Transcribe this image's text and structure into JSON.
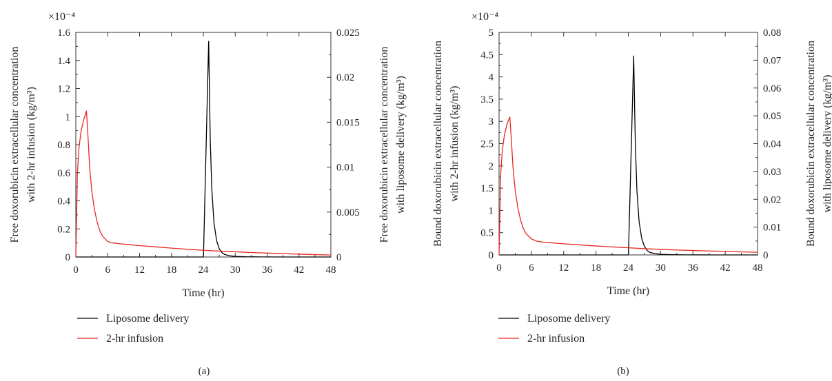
{
  "chart_data": [
    {
      "type": "line",
      "panel_label": "(a)",
      "xlabel": "Time (hr)",
      "xlim": [
        0,
        48
      ],
      "x_ticks": [
        0,
        6,
        12,
        18,
        24,
        30,
        36,
        42,
        48
      ],
      "ylabel_left": "Free doxorubicin extracellular concentration with 2-hr infusion (kg/m³)",
      "ylabel_left_lines": [
        "Free doxorubicin extracellular concentration",
        "with 2-hr infusion (kg/m³)"
      ],
      "ylim_left": [
        0,
        1.6
      ],
      "y_ticks_left": [
        0,
        0.2,
        0.4,
        0.6,
        0.8,
        1,
        1.2,
        1.4,
        1.6
      ],
      "y_left_multiplier": "×10⁻⁴",
      "ylabel_right": "Free doxorubicin extracellular concentration with liposome delivery (kg/m³)",
      "ylabel_right_lines": [
        "Free doxorubicin extracellular concentration",
        "with liposome delivery (kg/m³)"
      ],
      "ylim_right": [
        0,
        0.025
      ],
      "y_ticks_right": [
        0,
        0.005,
        0.01,
        0.015,
        0.02,
        0.025
      ],
      "y_tick_labels_right": [
        "0",
        "0.005",
        "0.01",
        "0.015",
        "0.02",
        "0.025"
      ],
      "grid": false,
      "legend_position": "bottom-left",
      "series": [
        {
          "name": "Liposome delivery",
          "color": "#000000",
          "axis": "right",
          "x": [
            0,
            24,
            24.02,
            25,
            25.3,
            25.6,
            26,
            26.5,
            27,
            27.5,
            28,
            29,
            30,
            32,
            35,
            40,
            48
          ],
          "y": [
            0,
            0,
            0,
            0.024,
            0.013,
            0.0075,
            0.0038,
            0.0018,
            0.0009,
            0.00048,
            0.00028,
            0.00013,
            7e-05,
            3e-05,
            1e-05,
            0,
            0
          ]
        },
        {
          "name": "2-hr infusion",
          "color": "#e8281e",
          "axis": "left",
          "x": [
            0,
            0.3,
            0.6,
            1.0,
            1.5,
            2.0,
            2.3,
            2.6,
            3.0,
            3.5,
            4.0,
            4.5,
            5.0,
            6.0,
            7.0,
            8.0,
            10,
            12,
            15,
            18,
            21,
            24,
            27,
            30,
            33,
            36,
            39,
            42,
            45,
            48
          ],
          "y": [
            0,
            0.6,
            0.78,
            0.9,
            0.98,
            1.04,
            0.85,
            0.64,
            0.47,
            0.34,
            0.25,
            0.19,
            0.15,
            0.11,
            0.1,
            0.095,
            0.088,
            0.081,
            0.072,
            0.063,
            0.055,
            0.048,
            0.042,
            0.037,
            0.032,
            0.028,
            0.024,
            0.02,
            0.017,
            0.014
          ]
        }
      ]
    },
    {
      "type": "line",
      "panel_label": "(b)",
      "xlabel": "Time (hr)",
      "xlim": [
        0,
        48
      ],
      "x_ticks": [
        0,
        6,
        12,
        18,
        24,
        30,
        36,
        42,
        48
      ],
      "ylabel_left": "Bound doxorubicin extracellular concentration with 2-hr infusion (kg/m³)",
      "ylabel_left_lines": [
        "Bound doxorubicin extracellular concentration",
        "with 2-hr infusion (kg/m³)"
      ],
      "ylim_left": [
        0,
        5
      ],
      "y_ticks_left": [
        0,
        0.5,
        1,
        1.5,
        2,
        2.5,
        3,
        3.5,
        4,
        4.5,
        5
      ],
      "y_left_multiplier": "×10⁻⁴",
      "ylabel_right": "Bound doxorubicin extracellular concentration with liposome delivery (kg/m³)",
      "ylabel_right_lines": [
        "Bound doxorubicin extracellular concentration",
        "with liposome delivery (kg/m³)"
      ],
      "ylim_right": [
        0,
        0.08
      ],
      "y_ticks_right": [
        0,
        0.01,
        0.02,
        0.03,
        0.04,
        0.05,
        0.06,
        0.07,
        0.08
      ],
      "y_tick_labels_right": [
        "0",
        "0.01",
        "0.02",
        "0.03",
        "0.04",
        "0.05",
        "0.06",
        "0.07",
        "0.08"
      ],
      "grid": false,
      "legend_position": "bottom-left",
      "series": [
        {
          "name": "Liposome delivery",
          "color": "#000000",
          "axis": "right",
          "x": [
            0,
            24,
            24.02,
            25,
            25.3,
            25.6,
            26,
            26.5,
            27,
            27.5,
            28,
            29,
            30,
            32,
            35,
            40,
            48
          ],
          "y": [
            0,
            0,
            0,
            0.0715,
            0.04,
            0.023,
            0.012,
            0.0058,
            0.003,
            0.0016,
            0.0009,
            0.00045,
            0.00022,
            0.0001,
            3e-05,
            0,
            0
          ]
        },
        {
          "name": "2-hr infusion",
          "color": "#e8281e",
          "axis": "left",
          "x": [
            0,
            0.3,
            0.6,
            1.0,
            1.5,
            2.0,
            2.3,
            2.6,
            3.0,
            3.5,
            4.0,
            4.5,
            5.0,
            6.0,
            7.0,
            8.0,
            10,
            12,
            15,
            18,
            21,
            24,
            27,
            30,
            33,
            36,
            39,
            42,
            45,
            48
          ],
          "y": [
            0,
            1.8,
            2.35,
            2.7,
            2.95,
            3.1,
            2.55,
            1.95,
            1.45,
            1.05,
            0.78,
            0.6,
            0.48,
            0.36,
            0.31,
            0.29,
            0.27,
            0.25,
            0.225,
            0.2,
            0.18,
            0.16,
            0.14,
            0.125,
            0.11,
            0.1,
            0.088,
            0.077,
            0.068,
            0.06
          ]
        }
      ]
    }
  ]
}
